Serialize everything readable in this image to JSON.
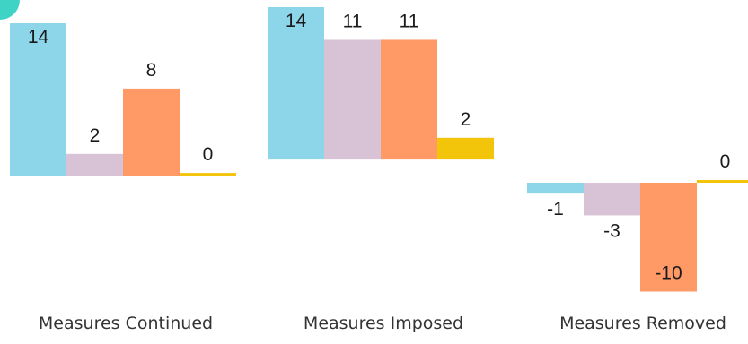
{
  "chart_data": {
    "type": "bar",
    "groups": [
      {
        "label": "Measures Continued",
        "values": [
          14,
          2,
          8,
          0
        ]
      },
      {
        "label": "Measures Imposed",
        "values": [
          14,
          11,
          11,
          2
        ]
      },
      {
        "label": "Measures Removed",
        "values": [
          -1,
          -3,
          -10,
          0
        ]
      }
    ],
    "series_colors": [
      "#8dd6ea",
      "#d8c3d6",
      "#ff9966",
      "#f2c40a"
    ],
    "grid": false,
    "legend": "none"
  },
  "decoration": {
    "corner_color": "#3fd3c6"
  }
}
